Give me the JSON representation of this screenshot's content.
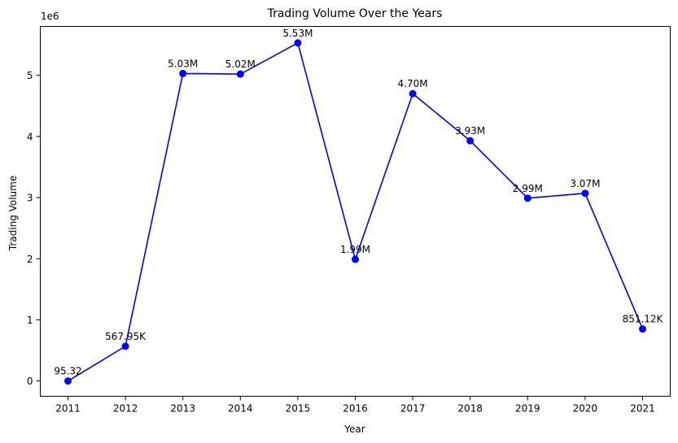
{
  "chart_data": {
    "type": "line",
    "title": "Trading Volume Over the Years",
    "xlabel": "Year",
    "ylabel": "Trading Volume",
    "y_offset_label": "1e6",
    "grid": false,
    "legend": "none",
    "color": "#0000ff",
    "x": [
      "2011",
      "2012",
      "2013",
      "2014",
      "2015",
      "2016",
      "2017",
      "2018",
      "2019",
      "2020",
      "2021"
    ],
    "values": [
      95.32,
      567950,
      5030000,
      5020000,
      5530000,
      1990000,
      4700000,
      3930000,
      2990000,
      3070000,
      851120
    ],
    "data_labels": [
      "95.32",
      "567.95K",
      "5.03M",
      "5.02M",
      "5.53M",
      "1.99M",
      "4.70M",
      "3.93M",
      "2.99M",
      "3.07M",
      "851.12K"
    ],
    "ylim": [
      -250000,
      5800000
    ],
    "yticks": [
      0,
      1,
      2,
      3,
      4,
      5
    ],
    "ytick_labels": [
      "0",
      "1",
      "2",
      "3",
      "4",
      "5"
    ]
  }
}
